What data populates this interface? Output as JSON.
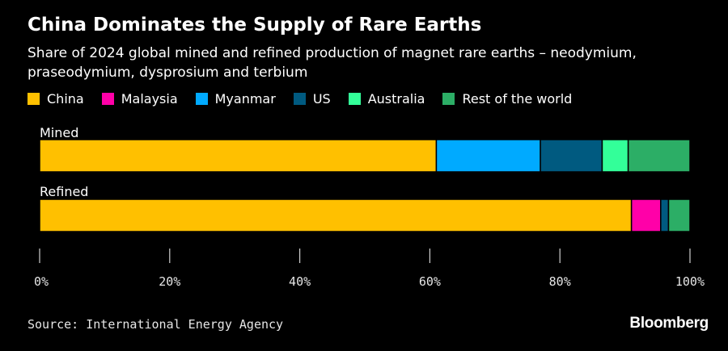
{
  "header": {
    "title": "China Dominates the Supply of Rare Earths",
    "subtitle": "Share of 2024 global mined and refined production of magnet rare earths – neodymium, praseodymium, dysprosium and terbium"
  },
  "legend": [
    {
      "label": "China",
      "color": "#FFC000"
    },
    {
      "label": "Malaysia",
      "color": "#FF00A8"
    },
    {
      "label": "Myanmar",
      "color": "#00AAFF"
    },
    {
      "label": "US",
      "color": "#005A80"
    },
    {
      "label": "Australia",
      "color": "#33FF99"
    },
    {
      "label": "Rest of the world",
      "color": "#2CAE66"
    }
  ],
  "chart_data": {
    "type": "bar",
    "orientation": "horizontal",
    "stacked": true,
    "categories": [
      "Mined",
      "Refined"
    ],
    "series": [
      {
        "name": "China",
        "color": "#FFC000",
        "values": [
          61,
          91
        ]
      },
      {
        "name": "Malaysia",
        "color": "#FF00A8",
        "values": [
          0,
          4.5
        ]
      },
      {
        "name": "Myanmar",
        "color": "#00AAFF",
        "values": [
          16,
          0
        ]
      },
      {
        "name": "US",
        "color": "#005A80",
        "values": [
          9.5,
          1.2
        ]
      },
      {
        "name": "Australia",
        "color": "#33FF99",
        "values": [
          4,
          0
        ]
      },
      {
        "name": "Rest of the world",
        "color": "#2CAE66",
        "values": [
          9.5,
          3.3
        ]
      }
    ],
    "xlim": [
      0,
      100
    ],
    "xticks": [
      0,
      20,
      40,
      60,
      80,
      100
    ],
    "xtick_labels": [
      "0%",
      "20%",
      "40%",
      "60%",
      "80%",
      "100%"
    ],
    "grid": false,
    "legend_position": "top-left"
  },
  "footer": {
    "source": "Source: International Energy Agency",
    "brand": "Bloomberg"
  }
}
